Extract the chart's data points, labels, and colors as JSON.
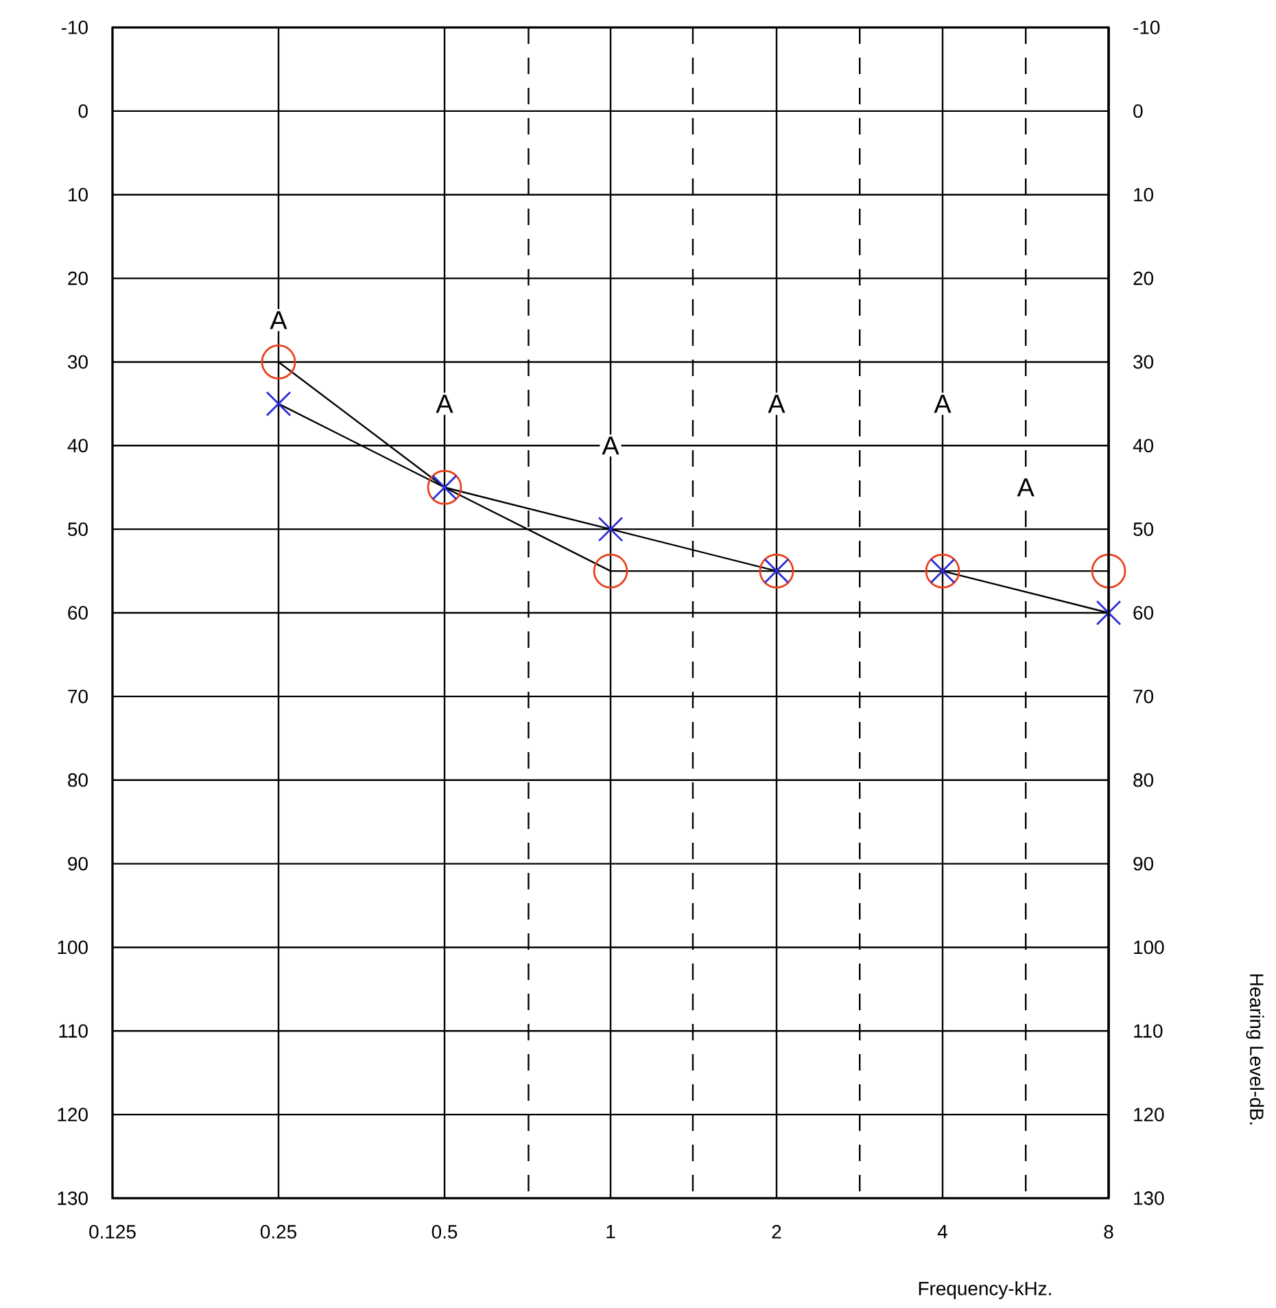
{
  "chart_data": {
    "type": "line",
    "xlabel": "Frequency-kHz.",
    "y2label": "Hearing Level-dB.",
    "log": "x",
    "xlim": [
      0.125,
      8
    ],
    "xticks": [
      0.125,
      0.25,
      0.5,
      1,
      2,
      4,
      8
    ],
    "ylim": [
      130,
      -10
    ],
    "yticks": [
      -10,
      0,
      10,
      20,
      30,
      40,
      50,
      60,
      70,
      80,
      90,
      100,
      110,
      120,
      130
    ],
    "y2lim": [
      130,
      -10
    ],
    "y2ticks": [
      -10,
      0,
      10,
      20,
      30,
      40,
      50,
      60,
      70,
      80,
      90,
      100,
      110,
      120,
      130
    ],
    "grid": true,
    "series": [
      {
        "color": "#e8401c",
        "marker": "circle",
        "x": [
          0.25,
          0.5,
          1,
          2,
          4,
          8
        ],
        "values": [
          30,
          45,
          55,
          55,
          55,
          55
        ]
      },
      {
        "color": "#2a2ad8",
        "marker": "cross",
        "x": [
          0.25,
          0.5,
          1,
          2,
          4,
          8
        ],
        "values": [
          35,
          45,
          50,
          55,
          55,
          60
        ]
      }
    ],
    "ref_lines": [
      {
        "axis": "x",
        "value": 0.71,
        "line_style": "dashed"
      },
      {
        "axis": "x",
        "value": 1.41,
        "line_style": "dashed"
      },
      {
        "axis": "x",
        "value": 2.83,
        "line_style": "dashed"
      },
      {
        "axis": "x",
        "value": 5.66,
        "line_style": "dashed"
      }
    ],
    "annotations": [
      {
        "text": "A",
        "x": 0.25,
        "y": 25
      },
      {
        "text": "A",
        "x": 0.5,
        "y": 35
      },
      {
        "text": "A",
        "x": 1,
        "y": 40
      },
      {
        "text": "A",
        "x": 2,
        "y": 35
      },
      {
        "text": "A",
        "x": 4,
        "y": 35
      },
      {
        "text": "A",
        "x": 5.66,
        "y": 45
      }
    ]
  }
}
